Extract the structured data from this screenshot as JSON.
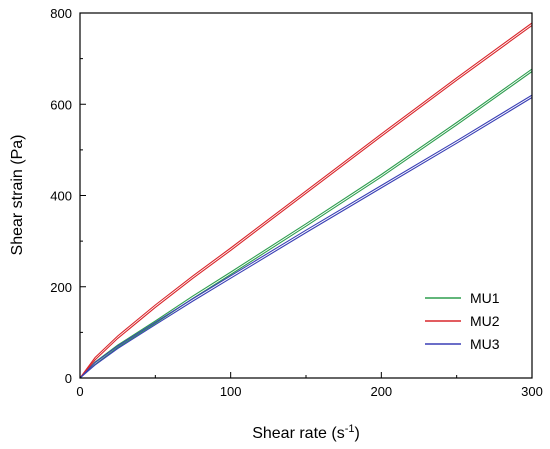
{
  "chart_data": {
    "type": "line",
    "title": "",
    "xlabel": "Shear rate (s",
    "xlabel_sup": "-1",
    "xlabel_suffix": ")",
    "ylabel": "Shear strain (Pa)",
    "xlim": [
      0,
      300
    ],
    "ylim": [
      0,
      800
    ],
    "xticks": [
      0,
      100,
      200,
      300
    ],
    "yticks": [
      0,
      200,
      400,
      600,
      800
    ],
    "grid": false,
    "legend_position": "bottom-right",
    "series": [
      {
        "name": "MU1",
        "color": "#2e9e4f",
        "x": [
          0,
          10,
          25,
          50,
          75,
          100,
          150,
          200,
          250,
          300
        ],
        "y": [
          0,
          35,
          72,
          125,
          180,
          232,
          338,
          446,
          560,
          677
        ]
      },
      {
        "name": "MU2",
        "color": "#d9262b",
        "x": [
          0,
          10,
          25,
          50,
          75,
          100,
          150,
          200,
          250,
          300
        ],
        "y": [
          0,
          45,
          92,
          160,
          224,
          285,
          410,
          535,
          658,
          778
        ]
      },
      {
        "name": "MU3",
        "color": "#3a3fb5",
        "x": [
          0,
          10,
          25,
          50,
          75,
          100,
          150,
          200,
          250,
          300
        ],
        "y": [
          0,
          34,
          70,
          122,
          174,
          224,
          324,
          422,
          520,
          620
        ]
      }
    ]
  }
}
